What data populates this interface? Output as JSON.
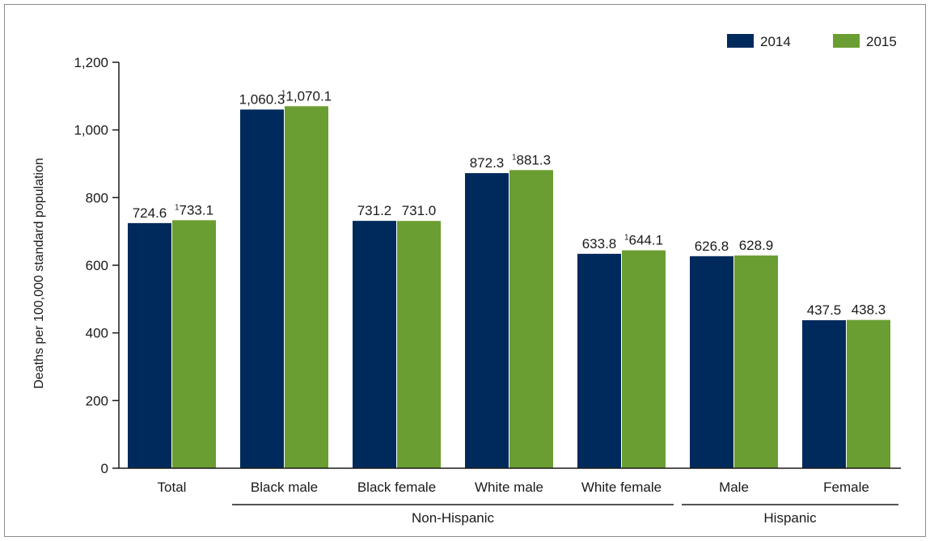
{
  "chart_data": {
    "type": "bar",
    "categories": [
      "Total",
      "Black male",
      "Black female",
      "White male",
      "White female",
      "Male",
      "Female"
    ],
    "groups": [
      {
        "label": "Non-Hispanic",
        "categories": [
          "Black male",
          "Black female",
          "White male",
          "White female"
        ]
      },
      {
        "label": "Hispanic",
        "categories": [
          "Male",
          "Female"
        ]
      }
    ],
    "series": [
      {
        "name": "2014",
        "color": "#002a5c",
        "values": [
          724.6,
          1060.3,
          731.2,
          872.3,
          633.8,
          626.8,
          437.5
        ],
        "labels": [
          "724.6",
          "1,060.3",
          "731.2",
          "872.3",
          "633.8",
          "626.8",
          "437.5"
        ],
        "footnotes": [
          "",
          "",
          "",
          "",
          "",
          "",
          ""
        ]
      },
      {
        "name": "2015",
        "color": "#6b9e32",
        "values": [
          733.1,
          1070.1,
          731.0,
          881.3,
          644.1,
          628.9,
          438.3
        ],
        "labels": [
          "733.1",
          "1,070.1",
          "731.0",
          "881.3",
          "644.1",
          "628.9",
          "438.3"
        ],
        "footnotes": [
          "1",
          "1",
          "",
          "1",
          "1",
          "",
          ""
        ]
      }
    ],
    "ylabel": "Deaths per 100,000 standard population",
    "ylim": [
      0,
      1200
    ],
    "yticks": [
      0,
      200,
      400,
      600,
      800,
      1000,
      1200
    ],
    "ytick_labels": [
      "0",
      "200",
      "400",
      "600",
      "800",
      "1,000",
      "1,200"
    ],
    "legend_position": "top-right",
    "grid": false
  }
}
